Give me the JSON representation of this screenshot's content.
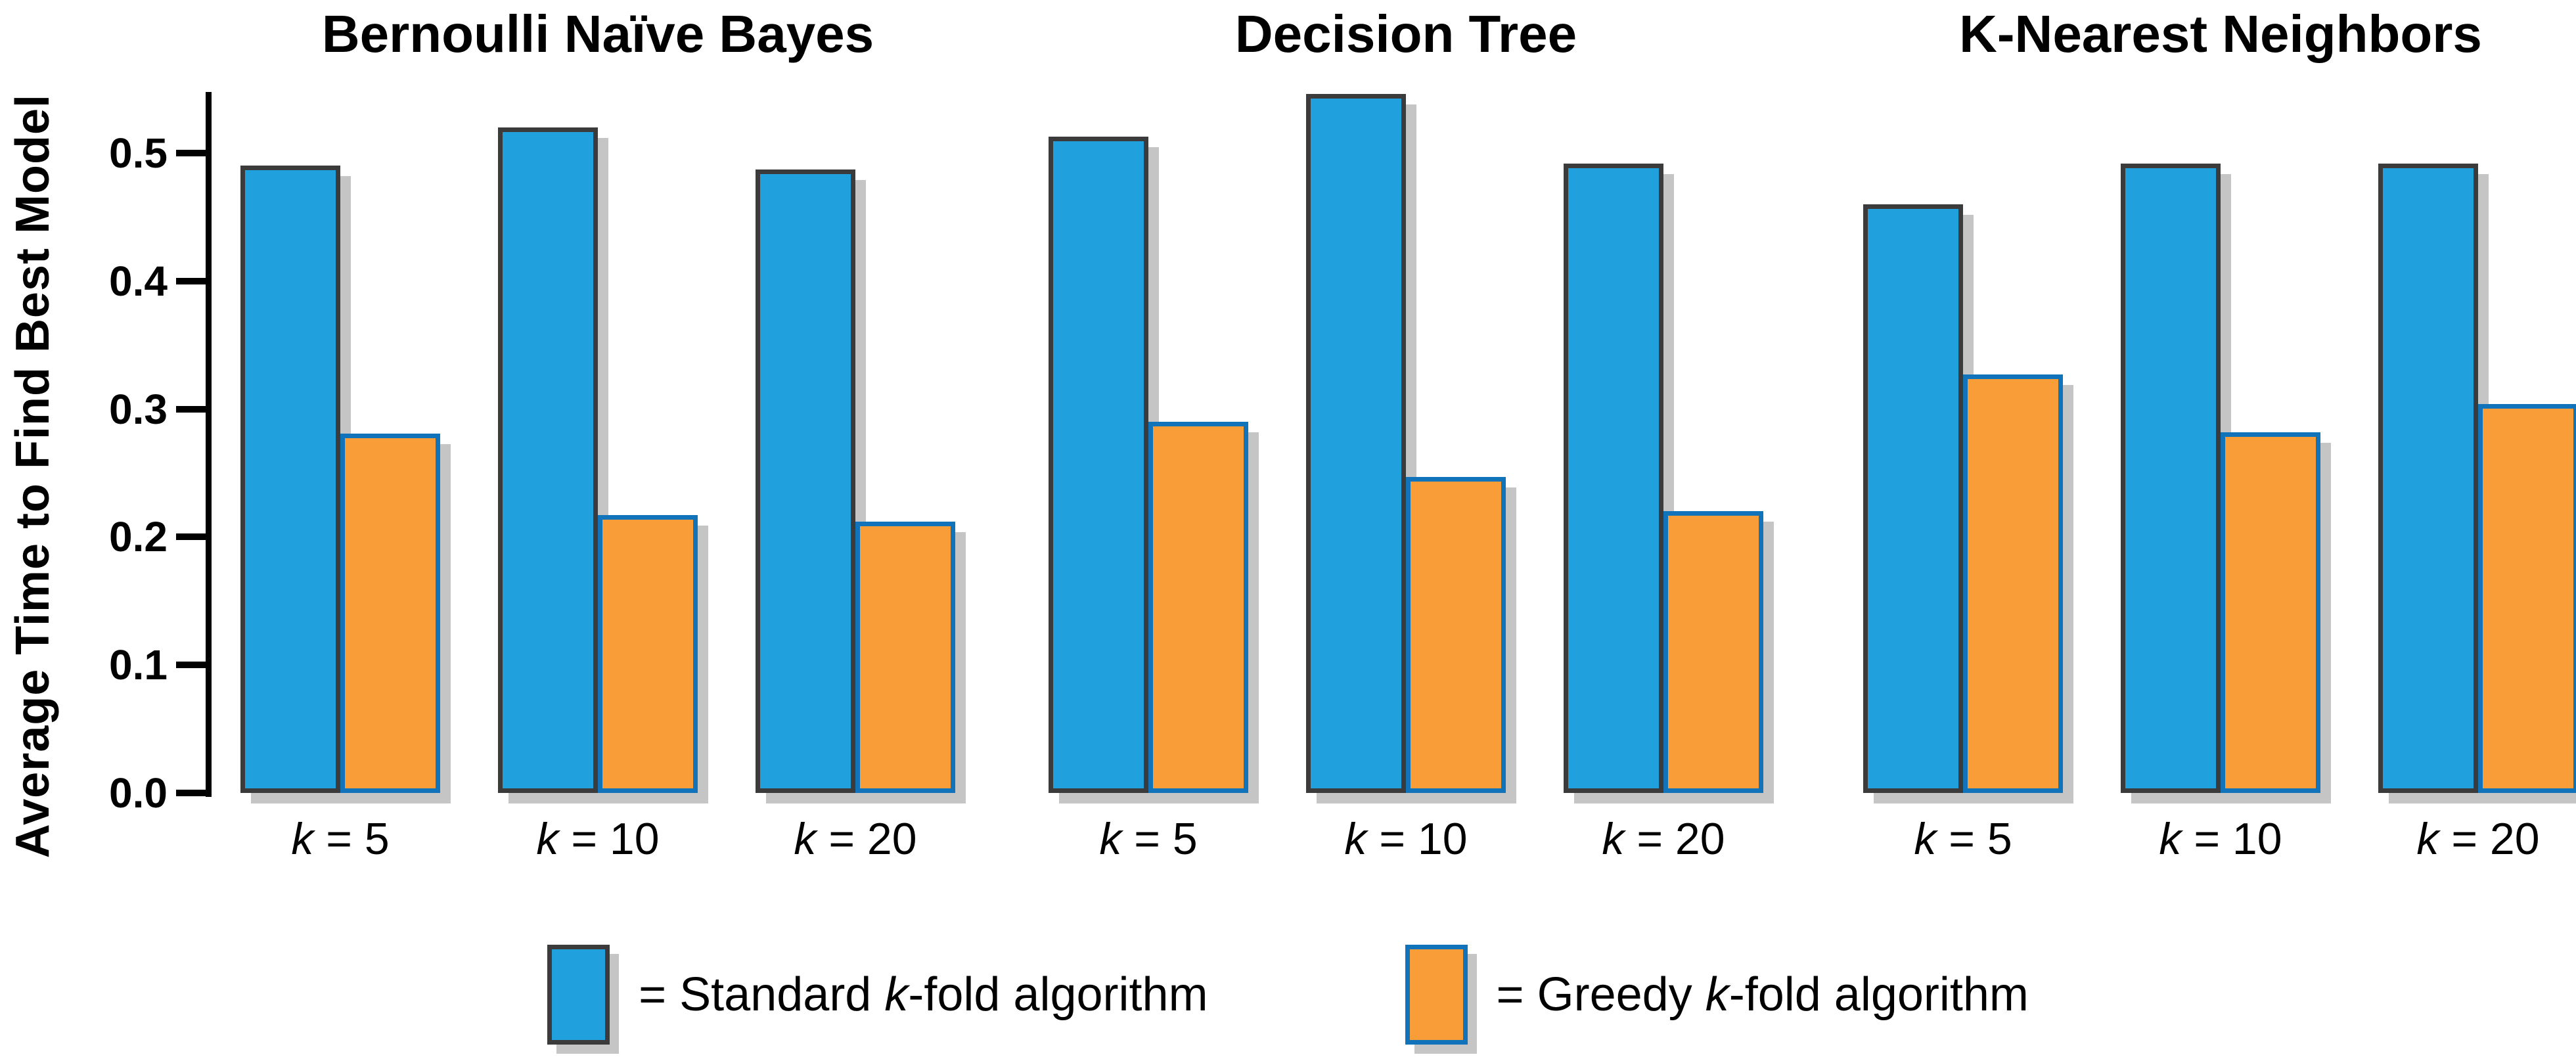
{
  "chart_data": {
    "type": "bar",
    "grouped": true,
    "ylabel": "Average Time to Find Best Model",
    "ylim": [
      0,
      0.55
    ],
    "ytick_labels": [
      "0.0",
      "0.1",
      "0.2",
      "0.3",
      "0.4",
      "0.5"
    ],
    "grid": false,
    "legend_position": "bottom",
    "categories": [
      "k = 5",
      "k = 10",
      "k = 20"
    ],
    "x_tick_parts": [
      {
        "italic": "k",
        "rest": " = 5"
      },
      {
        "italic": "k",
        "rest": " = 10"
      },
      {
        "italic": "k",
        "rest": " = 20"
      }
    ],
    "panels": [
      {
        "title": "Bernoulli Naïve Bayes",
        "series": [
          {
            "name": "Standard k-fold algorithm",
            "values": [
              0.49,
              0.52,
              0.487
            ]
          },
          {
            "name": "Greedy k-fold algorithm",
            "values": [
              0.281,
              0.217,
              0.212
            ]
          }
        ]
      },
      {
        "title": "Decision Tree",
        "series": [
          {
            "name": "Standard k-fold algorithm",
            "values": [
              0.513,
              0.546,
              0.492
            ]
          },
          {
            "name": "Greedy k-fold algorithm",
            "values": [
              0.29,
              0.247,
              0.22
            ]
          }
        ]
      },
      {
        "title": "K-Nearest Neighbors",
        "series": [
          {
            "name": "Standard k-fold algorithm",
            "values": [
              0.46,
              0.492,
              0.492
            ]
          },
          {
            "name": "Greedy k-fold algorithm",
            "values": [
              0.327,
              0.282,
              0.304
            ]
          }
        ]
      }
    ],
    "colors": {
      "standard": "#21A0DE",
      "standard_border": "#3B3B3B",
      "greedy": "#F99D38",
      "greedy_border": "#1173B9",
      "shadow": "#C5C5C5",
      "axis": "#000000"
    }
  },
  "legend": {
    "items": [
      {
        "prefix": "= Standard ",
        "italic_part": "k",
        "suffix": "-fold algorithm",
        "color_key": "standard"
      },
      {
        "prefix": "= Greedy ",
        "italic_part": "k",
        "suffix": "-fold algorithm",
        "color_key": "greedy"
      }
    ]
  }
}
